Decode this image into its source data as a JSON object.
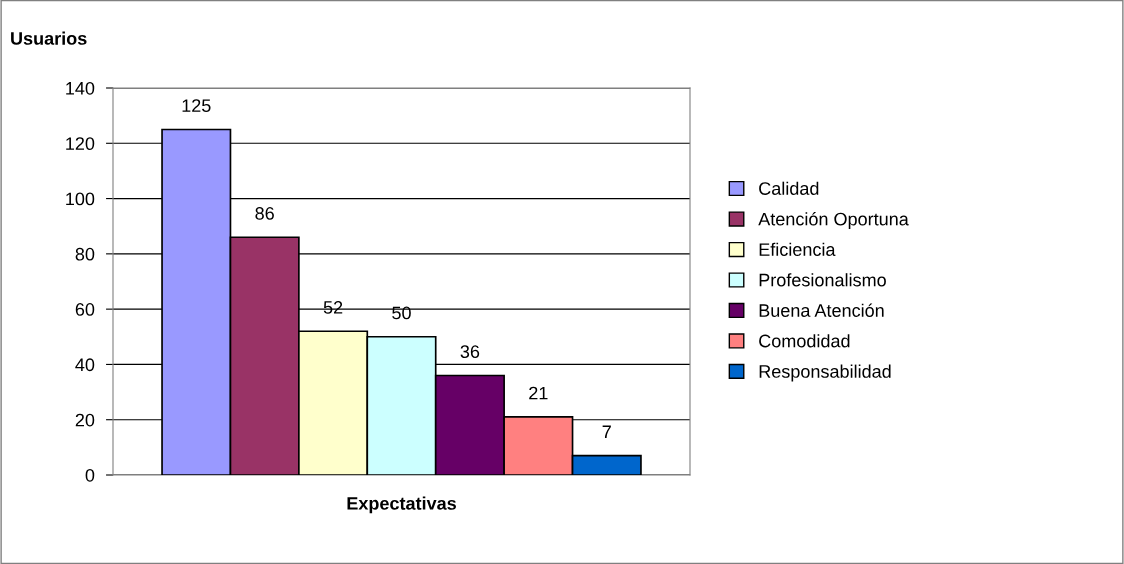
{
  "chart_data": {
    "type": "bar",
    "title": "Usuarios",
    "xlabel": "Expectativas",
    "categories": [
      null
    ],
    "series": [
      {
        "name": "Calidad",
        "color": "#9999ff",
        "values": [
          125
        ]
      },
      {
        "name": "Atención Oportuna",
        "color": "#993366",
        "values": [
          86
        ]
      },
      {
        "name": "Eficiencia",
        "color": "#ffffcc",
        "values": [
          52
        ]
      },
      {
        "name": "Profesionalismo",
        "color": "#ccffff",
        "values": [
          50
        ]
      },
      {
        "name": "Buena Atención",
        "color": "#660066",
        "values": [
          36
        ]
      },
      {
        "name": "Comodidad",
        "color": "#ff8080",
        "values": [
          21
        ]
      },
      {
        "name": "Responsabilidad",
        "color": "#0066cc",
        "values": [
          7
        ]
      }
    ],
    "ylim": [
      0,
      140
    ],
    "yticks": [
      0,
      20,
      40,
      60,
      80,
      100,
      120,
      140
    ],
    "grid": "y",
    "legend": "right",
    "data_labels": true
  }
}
